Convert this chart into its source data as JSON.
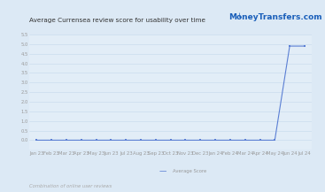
{
  "title": "Average Currensea review score for usability over time",
  "footer": "Combination of online user reviews",
  "legend_label": "Average Score",
  "bg_color": "#dce9f5",
  "plot_bg_color": "#e2edf7",
  "line_color": "#5b7fd4",
  "marker_color": "#5b7fd4",
  "ylim_min": -0.5,
  "ylim_max": 5.5,
  "yticks": [
    0.0,
    0.5,
    1.0,
    1.5,
    2.0,
    2.5,
    3.0,
    3.5,
    4.0,
    4.5,
    5.0,
    5.5
  ],
  "x_labels": [
    "Jan 23",
    "Feb 23",
    "Mar 23",
    "Apr 23",
    "May 23",
    "Jun 23",
    "Jul 23",
    "Aug 23",
    "Sep 23",
    "Oct 23",
    "Nov 23",
    "Dec 23",
    "Jan 24",
    "Feb 24",
    "Mar 24",
    "Apr 24",
    "May 24",
    "Jun 24",
    "Jul 24"
  ],
  "y_values": [
    0,
    0,
    0,
    0,
    0,
    0,
    0,
    0,
    0,
    0,
    0,
    0,
    0,
    0,
    0,
    0,
    0,
    4.9,
    4.9
  ],
  "title_color": "#333333",
  "tick_color": "#999999",
  "grid_color": "#c5d9ec",
  "logo_text": "MoneyTransfers.com",
  "logo_color": "#1a5fba",
  "title_fontsize": 5.2,
  "tick_fontsize": 3.8,
  "footer_fontsize": 3.8,
  "legend_fontsize": 3.8,
  "logo_fontsize": 6.5
}
